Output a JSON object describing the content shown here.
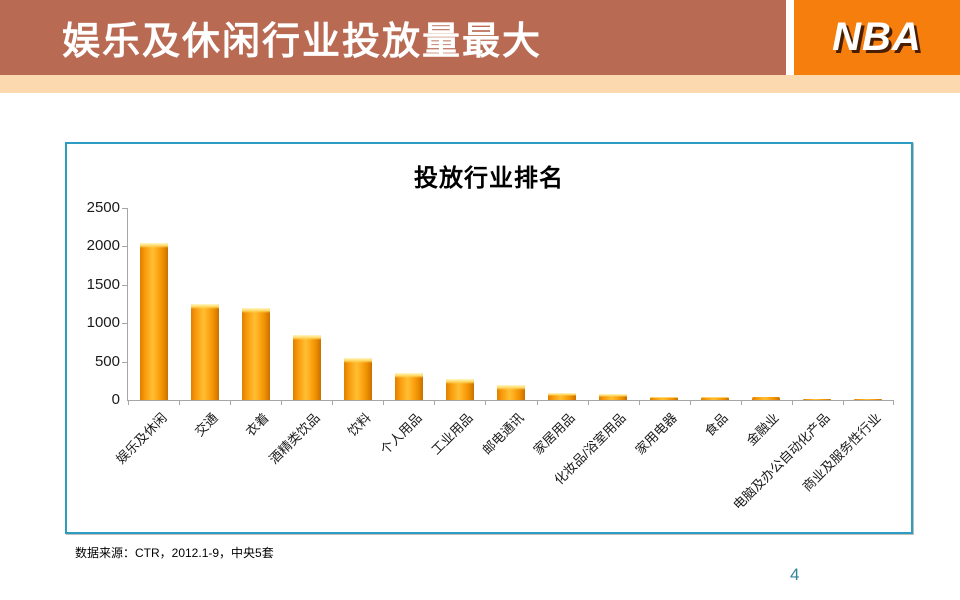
{
  "header": {
    "title": "娱乐及休闲行业投放量最大",
    "logo": "NBA"
  },
  "colors": {
    "header_bg": "#B96A53",
    "logo_bg": "#F57E0C",
    "accent_strip": "#FCD9AE",
    "chart_border": "#2D9CC3",
    "bar_orange": "#FFAE1E",
    "axis_gray": "#A6A6A6",
    "page_number": "#31849B"
  },
  "chart_data": {
    "type": "bar",
    "title": "投放行业排名",
    "categories": [
      "娱乐及休闲",
      "交通",
      "衣着",
      "酒精类饮品",
      "饮料",
      "个人用品",
      "工业用品",
      "邮电通讯",
      "家居用品",
      "化妆品/浴室用品",
      "家用电器",
      "食品",
      "金融业",
      "电脑及办公自动化产品",
      "商业及服务性行业"
    ],
    "values": [
      2040,
      1250,
      1200,
      845,
      545,
      350,
      270,
      200,
      95,
      80,
      45,
      40,
      35,
      12,
      8
    ],
    "xlabel": "",
    "ylabel": "",
    "ylim": [
      0,
      2500
    ],
    "yticks": [
      0,
      500,
      1000,
      1500,
      2000,
      2500
    ],
    "grid": false,
    "legend": null,
    "x_label_rotation_deg": -45
  },
  "footer": {
    "source": "数据来源：CTR，2012.1-9，中央5套",
    "page_number": "4"
  }
}
